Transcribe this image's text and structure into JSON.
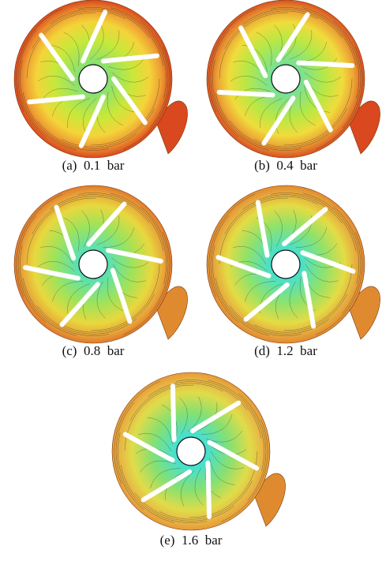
{
  "panels": [
    {
      "caption": "(a)  0.1  bar"
    },
    {
      "caption": "(b)  0.4  bar"
    },
    {
      "caption": "(c)  0.8  bar"
    },
    {
      "caption": "(d)  1.2  bar"
    },
    {
      "caption": "(e)  1.6  bar"
    }
  ]
}
